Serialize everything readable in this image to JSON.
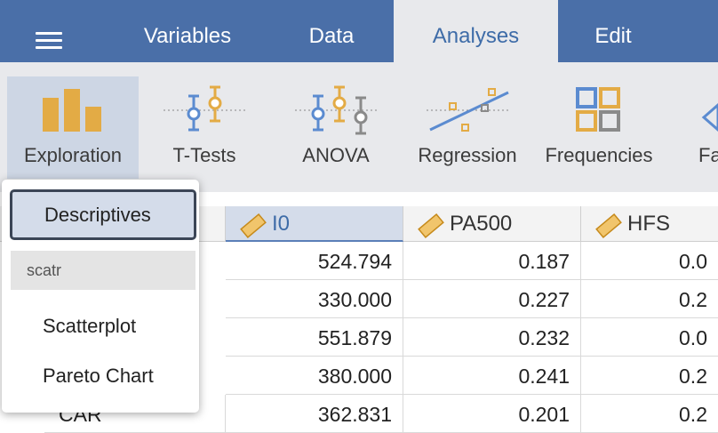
{
  "menu": {
    "tabs": [
      {
        "label": "Variables"
      },
      {
        "label": "Data"
      },
      {
        "label": "Analyses",
        "active": true
      },
      {
        "label": "Edit"
      }
    ]
  },
  "ribbon": {
    "buttons": [
      {
        "label": "Exploration",
        "icon": "bar-chart-icon",
        "active": true
      },
      {
        "label": "T-Tests",
        "icon": "t-tests-icon"
      },
      {
        "label": "ANOVA",
        "icon": "anova-icon"
      },
      {
        "label": "Regression",
        "icon": "regression-icon"
      },
      {
        "label": "Frequencies",
        "icon": "frequencies-icon"
      },
      {
        "label": "Fa",
        "icon": "factor-icon"
      }
    ]
  },
  "dropdown": {
    "selected": "Descriptives",
    "search_group": "scatr",
    "items": [
      "Scatterplot",
      "Pareto Chart"
    ]
  },
  "grid": {
    "columns": [
      {
        "name": "I0",
        "icon": "ruler-icon",
        "selected": true
      },
      {
        "name": "PA500",
        "icon": "ruler-icon"
      },
      {
        "name": "HFS",
        "icon": "ruler-icon"
      }
    ],
    "rows": [
      [
        "524.794",
        "0.187",
        "0.0"
      ],
      [
        "330.000",
        "0.227",
        "0.2"
      ],
      [
        "551.879",
        "0.232",
        "0.0"
      ],
      [
        "380.000",
        "0.241",
        "0.2"
      ],
      [
        "362.831",
        "0.201",
        "0.2"
      ]
    ],
    "partial_row_label": "CAR"
  },
  "colors": {
    "topbar": "#4a6fa8",
    "accent": "#3e6ca8",
    "icon_orange": "#e3ab45",
    "icon_blue": "#5b8bd0"
  }
}
